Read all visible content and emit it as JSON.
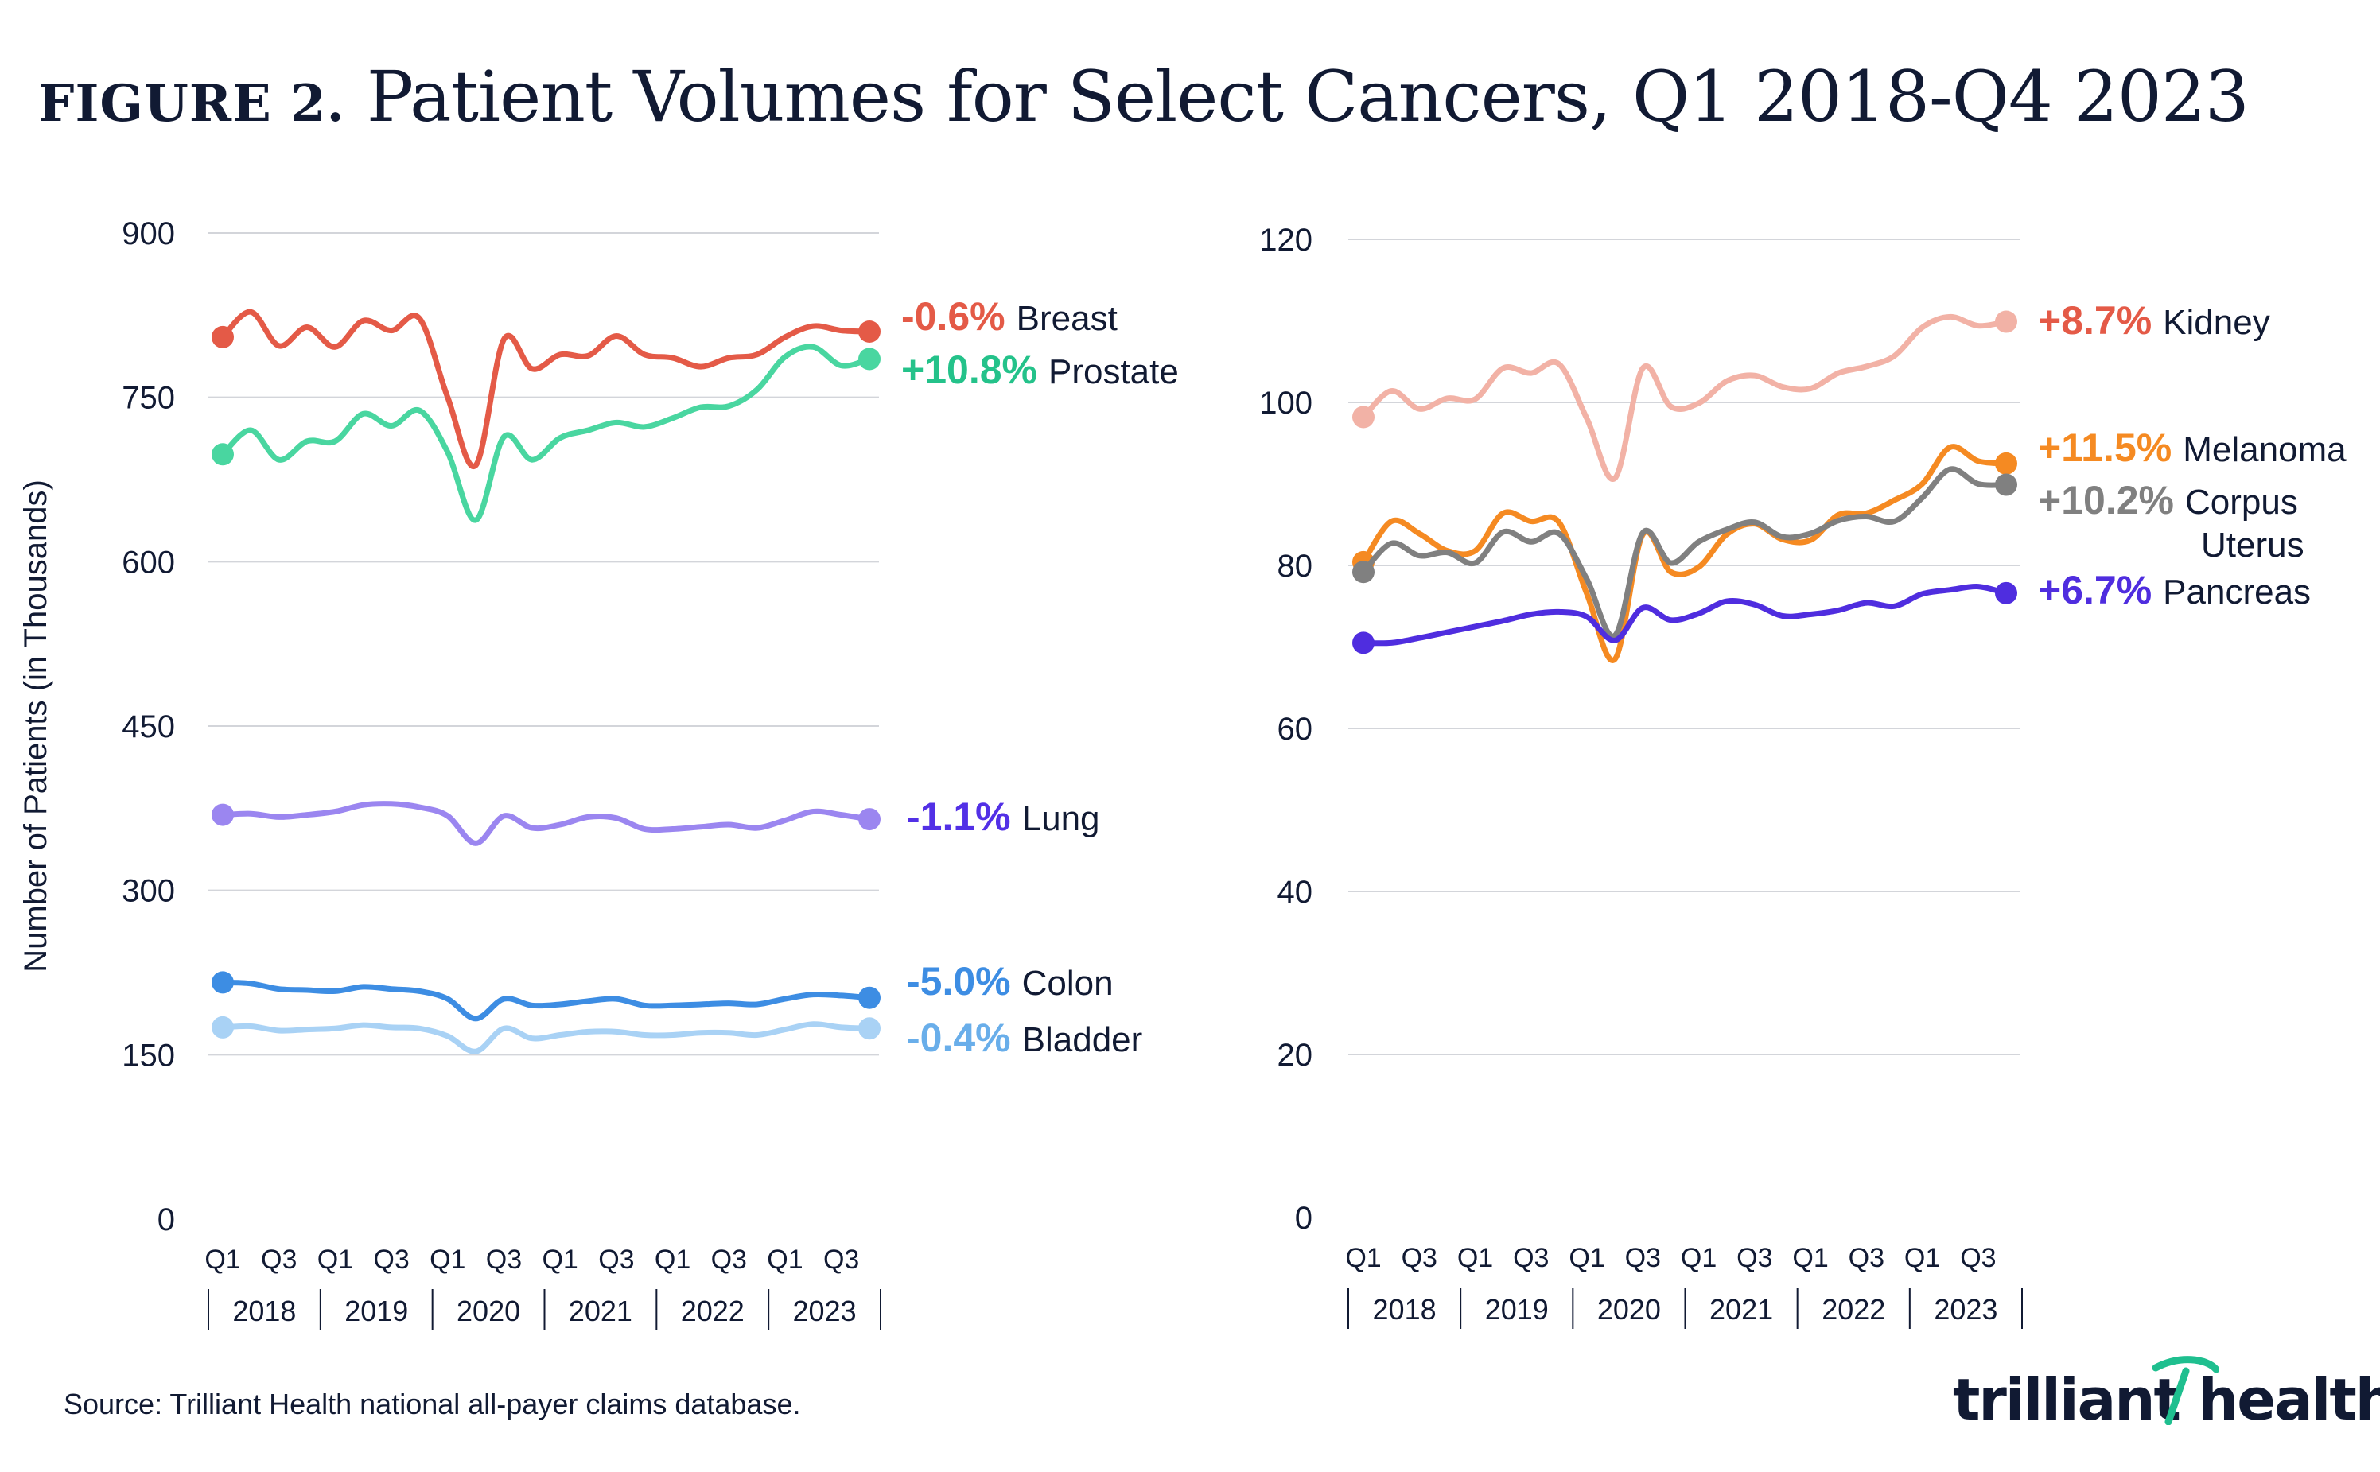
{
  "header": {
    "figure_label": "FIGURE 2.",
    "title": "Patient Volumes for Select Cancers, Q1 2018-Q4 2023"
  },
  "footer": {
    "source": "Source: Trilliant Health national all-payer claims database.",
    "logo_text": "trilliant health",
    "logo_mark": "®"
  },
  "chart_data": [
    {
      "type": "line",
      "ylabel": "Number of Patients (in Thousands)",
      "ylim": [
        0,
        900
      ],
      "yticks": [
        0,
        150,
        300,
        450,
        600,
        750,
        900
      ],
      "grid": true,
      "x": [
        "Q1 2018",
        "Q2 2018",
        "Q3 2018",
        "Q4 2018",
        "Q1 2019",
        "Q2 2019",
        "Q3 2019",
        "Q4 2019",
        "Q1 2020",
        "Q2 2020",
        "Q3 2020",
        "Q4 2020",
        "Q1 2021",
        "Q2 2021",
        "Q3 2021",
        "Q4 2021",
        "Q1 2022",
        "Q2 2022",
        "Q3 2022",
        "Q4 2022",
        "Q1 2023",
        "Q2 2023",
        "Q3 2023",
        "Q4 2023"
      ],
      "quarter_tick_labels": [
        "Q1",
        "Q3",
        "Q1",
        "Q3",
        "Q1",
        "Q3",
        "Q1",
        "Q3",
        "Q1",
        "Q3",
        "Q1",
        "Q3"
      ],
      "year_labels": [
        "2018",
        "2019",
        "2020",
        "2021",
        "2022",
        "2023"
      ],
      "series": [
        {
          "name": "Breast",
          "change": "-0.6%",
          "color": "#e45a47",
          "label_color": "#e45a47",
          "values": [
            805,
            828,
            797,
            814,
            796,
            820,
            811,
            822,
            750,
            688,
            803,
            776,
            789,
            788,
            806,
            789,
            786,
            778,
            786,
            789,
            805,
            815,
            811,
            810
          ]
        },
        {
          "name": "Prostate",
          "change": "+10.8%",
          "color": "#49d6a0",
          "label_color": "#24c28a",
          "values": [
            698,
            720,
            693,
            710,
            710,
            735,
            724,
            738,
            700,
            638,
            714,
            693,
            713,
            720,
            727,
            723,
            731,
            741,
            742,
            757,
            787,
            796,
            779,
            785
          ]
        },
        {
          "name": "Lung",
          "change": "-1.1%",
          "color": "#9b86f0",
          "label_color": "#5230e6",
          "values": [
            369,
            370,
            367,
            369,
            372,
            378,
            379,
            376,
            368,
            343,
            368,
            357,
            360,
            367,
            366,
            356,
            356,
            358,
            360,
            357,
            364,
            372,
            369,
            365
          ]
        },
        {
          "name": "Colon",
          "change": "-5.0%",
          "color": "#3d8de3",
          "label_color": "#3d8de3",
          "values": [
            216,
            215,
            210,
            209,
            208,
            212,
            210,
            208,
            201,
            183,
            201,
            195,
            196,
            199,
            201,
            195,
            195,
            196,
            197,
            196,
            201,
            205,
            204,
            202
          ]
        },
        {
          "name": "Bladder",
          "change": "-0.4%",
          "color": "#a9d2f5",
          "label_color": "#69aeea",
          "values": [
            175,
            176,
            172,
            173,
            174,
            177,
            175,
            174,
            167,
            153,
            174,
            165,
            168,
            171,
            171,
            168,
            168,
            170,
            170,
            168,
            173,
            178,
            175,
            174
          ]
        }
      ]
    },
    {
      "type": "line",
      "ylabel": "",
      "ylim": [
        0,
        120
      ],
      "yticks": [
        0,
        20,
        40,
        60,
        80,
        100,
        120
      ],
      "grid": true,
      "x": [
        "Q1 2018",
        "Q2 2018",
        "Q3 2018",
        "Q4 2018",
        "Q1 2019",
        "Q2 2019",
        "Q3 2019",
        "Q4 2019",
        "Q1 2020",
        "Q2 2020",
        "Q3 2020",
        "Q4 2020",
        "Q1 2021",
        "Q2 2021",
        "Q3 2021",
        "Q4 2021",
        "Q1 2022",
        "Q2 2022",
        "Q3 2022",
        "Q4 2022",
        "Q1 2023",
        "Q2 2023",
        "Q3 2023",
        "Q4 2023"
      ],
      "quarter_tick_labels": [
        "Q1",
        "Q3",
        "Q1",
        "Q3",
        "Q1",
        "Q3",
        "Q1",
        "Q3",
        "Q1",
        "Q3",
        "Q1",
        "Q3"
      ],
      "year_labels": [
        "2018",
        "2019",
        "2020",
        "2021",
        "2022",
        "2023"
      ],
      "series": [
        {
          "name": "Kidney",
          "change": "+8.7%",
          "color": "#f2b2a6",
          "label_color": "#e45a47",
          "values": [
            98.2,
            101.4,
            99.2,
            100.5,
            100.4,
            104.2,
            103.6,
            104.7,
            98.0,
            90.7,
            104.2,
            99.5,
            99.9,
            102.6,
            103.3,
            101.9,
            101.7,
            103.6,
            104.4,
            105.7,
            109.2,
            110.5,
            109.4,
            109.9
          ]
        },
        {
          "name": "Melanoma",
          "change": "+11.5%",
          "color": "#f58a22",
          "label_color": "#f58a22",
          "values": [
            80.4,
            85.4,
            83.9,
            81.8,
            81.8,
            86.4,
            85.4,
            85.3,
            76.5,
            68.5,
            83.8,
            79.2,
            79.8,
            83.8,
            85.1,
            83.2,
            83.1,
            86.2,
            86.4,
            88.0,
            90.0,
            94.5,
            92.8,
            92.5
          ]
        },
        {
          "name": "Corpus Uterus",
          "change": "+10.2%",
          "color": "#808080",
          "label_color": "#808080",
          "values": [
            79.2,
            82.7,
            81.2,
            81.6,
            80.3,
            84.1,
            82.9,
            83.9,
            78.3,
            71.4,
            84.0,
            80.3,
            82.9,
            84.4,
            85.3,
            83.5,
            83.9,
            85.5,
            86.0,
            85.4,
            88.3,
            91.8,
            90.0,
            89.9
          ]
        },
        {
          "name": "Pancreas",
          "change": "+6.7%",
          "color": "#4f2ddf",
          "label_color": "#4f2ddf",
          "values": [
            70.5,
            70.5,
            71.1,
            71.8,
            72.5,
            73.2,
            74.0,
            74.3,
            73.7,
            70.8,
            74.8,
            73.3,
            74.1,
            75.6,
            75.2,
            73.8,
            74.0,
            74.5,
            75.4,
            75.0,
            76.5,
            77.0,
            77.4,
            76.6
          ]
        }
      ]
    }
  ]
}
